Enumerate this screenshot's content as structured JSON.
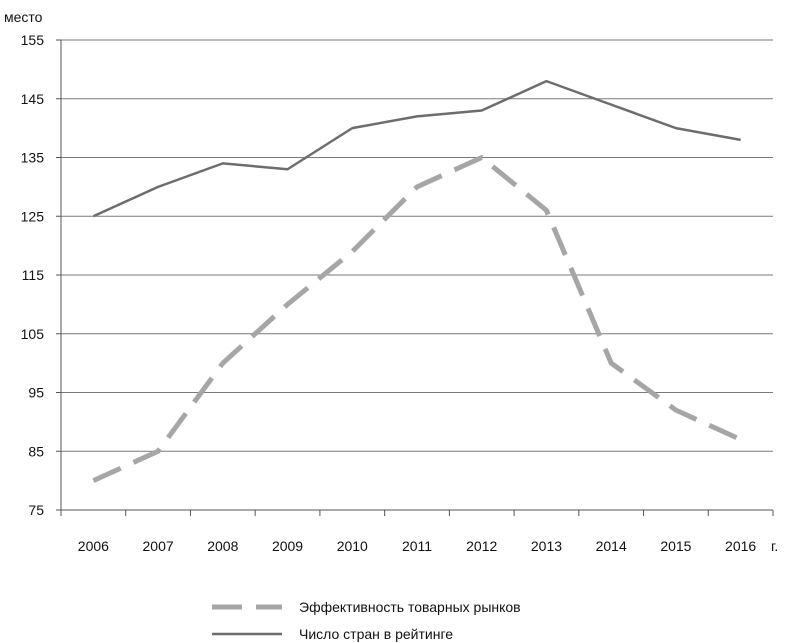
{
  "chart_data": {
    "type": "line",
    "y_unit_label": "место",
    "x_unit_label": "г.",
    "x": [
      2006,
      2007,
      2008,
      2009,
      2010,
      2011,
      2012,
      2013,
      2014,
      2015,
      2016
    ],
    "y_ticks": [
      75,
      85,
      95,
      105,
      115,
      125,
      135,
      145,
      155
    ],
    "ylim": [
      75,
      155
    ],
    "grid": "horizontal",
    "legend_position": "bottom",
    "series": [
      {
        "name": "Эффективность товарных рынков",
        "style": "dashed",
        "color": "#a6a6a6",
        "values": [
          80,
          85,
          100,
          110,
          119,
          130,
          135,
          126,
          100,
          92,
          87
        ]
      },
      {
        "name": "Число стран в рейтинге",
        "style": "solid",
        "color": "#6d6d6d",
        "values": [
          125,
          130,
          134,
          133,
          140,
          142,
          143,
          148,
          144,
          140,
          138
        ]
      }
    ]
  }
}
